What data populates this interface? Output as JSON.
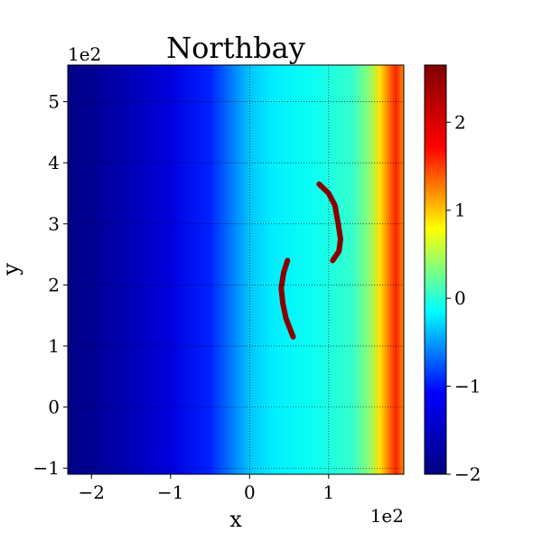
{
  "chart_data": {
    "type": "heatmap",
    "title": "Northbay",
    "xlabel": "x",
    "ylabel": "y",
    "x_offset_label": "1e2",
    "y_offset_label": "1e2",
    "xlim": [
      -2.3,
      1.95
    ],
    "ylim": [
      -1.1,
      5.6
    ],
    "x_ticks": [
      -2,
      -1,
      0,
      1
    ],
    "x_tick_labels": [
      "−2",
      "−1",
      "0",
      "1"
    ],
    "y_ticks": [
      -1,
      0,
      1,
      2,
      3,
      4,
      5
    ],
    "y_tick_labels": [
      "−1",
      "0",
      "1",
      "2",
      "3",
      "4",
      "5"
    ],
    "grid": true,
    "grid_style": "dotted",
    "colormap": "jet",
    "colorbar": {
      "range": [
        -2,
        2.65
      ],
      "ticks": [
        -2,
        -1,
        0,
        1,
        2
      ],
      "tick_labels": [
        "−2",
        "−1",
        "0",
        "1",
        "2"
      ]
    },
    "field_profile_x": [
      {
        "x": -2.3,
        "v": -1.95
      },
      {
        "x": -2.0,
        "v": -1.85
      },
      {
        "x": -1.5,
        "v": -1.6
      },
      {
        "x": -1.0,
        "v": -1.3
      },
      {
        "x": -0.5,
        "v": -0.95
      },
      {
        "x": 0.0,
        "v": -0.35
      },
      {
        "x": 0.3,
        "v": -0.2
      },
      {
        "x": 0.8,
        "v": -0.1
      },
      {
        "x": 1.3,
        "v": 0.05
      },
      {
        "x": 1.5,
        "v": 0.35
      },
      {
        "x": 1.65,
        "v": 0.9
      },
      {
        "x": 1.85,
        "v": 1.6
      },
      {
        "x": 1.95,
        "v": 1.2
      }
    ],
    "high_values": [
      {
        "name": "upper ridge",
        "points": [
          [
            0.88,
            3.65
          ],
          [
            1.0,
            3.5
          ],
          [
            1.08,
            3.3
          ],
          [
            1.12,
            3.0
          ],
          [
            1.15,
            2.75
          ],
          [
            1.13,
            2.55
          ],
          [
            1.05,
            2.4
          ]
        ],
        "value": 2.6
      },
      {
        "name": "lower ridge",
        "points": [
          [
            0.48,
            2.4
          ],
          [
            0.43,
            2.2
          ],
          [
            0.4,
            1.95
          ],
          [
            0.42,
            1.7
          ],
          [
            0.46,
            1.45
          ],
          [
            0.55,
            1.15
          ]
        ],
        "value": 2.6
      }
    ]
  },
  "colors": {
    "jet_stops": [
      "#000080",
      "#0000ff",
      "#00ffff",
      "#ffff00",
      "#ff0000",
      "#800000"
    ]
  }
}
